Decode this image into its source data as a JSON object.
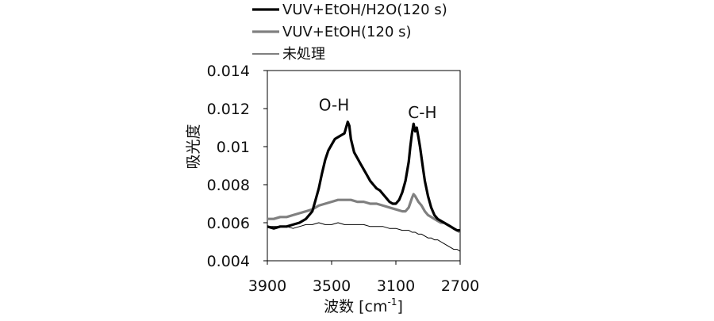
{
  "chart_data": {
    "type": "line",
    "xlabel": "波数 [cm",
    "xlabel_sup": "-1",
    "xlabel_close": "]",
    "ylabel": "吸光度",
    "xlim": [
      3900,
      2700
    ],
    "ylim": [
      0.004,
      0.014
    ],
    "x_reversed": true,
    "x_ticks": [
      3900,
      3500,
      3100,
      2700
    ],
    "y_ticks": [
      0.004,
      0.006,
      0.008,
      0.01,
      0.012,
      0.014
    ],
    "y_tick_labels": [
      "0.004",
      "0.006",
      "0.008",
      "0.01",
      "0.012",
      "0.014"
    ],
    "x_tick_labels": [
      "3900",
      "3500",
      "3100",
      "2700"
    ],
    "grid": false,
    "legend_position": "top",
    "annotations": [
      {
        "text": "O-H",
        "x": 3485,
        "y": 0.0119
      },
      {
        "text": "C-H",
        "x": 2935,
        "y": 0.0115
      }
    ],
    "series": [
      {
        "name": "VUV+EtOH/H2O(120 s)",
        "color": "#000000",
        "width": "thick",
        "x": [
          3900,
          3860,
          3820,
          3780,
          3740,
          3700,
          3660,
          3620,
          3600,
          3580,
          3560,
          3540,
          3520,
          3500,
          3480,
          3460,
          3440,
          3420,
          3400,
          3390,
          3380,
          3360,
          3340,
          3320,
          3300,
          3280,
          3260,
          3240,
          3220,
          3200,
          3180,
          3160,
          3140,
          3120,
          3100,
          3080,
          3060,
          3040,
          3020,
          3010,
          3000,
          2990,
          2980,
          2970,
          2960,
          2950,
          2940,
          2930,
          2920,
          2900,
          2880,
          2860,
          2840,
          2820,
          2800,
          2780,
          2760,
          2740,
          2720,
          2700
        ],
        "y": [
          0.0058,
          0.0057,
          0.0058,
          0.0058,
          0.0059,
          0.006,
          0.0062,
          0.0066,
          0.0072,
          0.0078,
          0.0086,
          0.0093,
          0.0098,
          0.0101,
          0.0104,
          0.0105,
          0.0106,
          0.0107,
          0.0113,
          0.0111,
          0.0104,
          0.0097,
          0.0094,
          0.0091,
          0.0088,
          0.0085,
          0.0082,
          0.008,
          0.0078,
          0.0077,
          0.0075,
          0.0073,
          0.0071,
          0.007,
          0.007,
          0.0072,
          0.0076,
          0.0082,
          0.0092,
          0.01,
          0.0107,
          0.0112,
          0.0108,
          0.011,
          0.0105,
          0.01,
          0.0094,
          0.0088,
          0.0082,
          0.0074,
          0.0068,
          0.0064,
          0.0062,
          0.0061,
          0.006,
          0.0059,
          0.0058,
          0.0057,
          0.0056,
          0.0056
        ]
      },
      {
        "name": "VUV+EtOH(120 s)",
        "color": "#808080",
        "width": "medium",
        "x": [
          3900,
          3860,
          3820,
          3780,
          3740,
          3700,
          3660,
          3620,
          3580,
          3540,
          3500,
          3460,
          3420,
          3380,
          3340,
          3300,
          3260,
          3220,
          3180,
          3140,
          3100,
          3060,
          3040,
          3020,
          3000,
          2990,
          2980,
          2960,
          2940,
          2920,
          2900,
          2880,
          2860,
          2840,
          2820,
          2800,
          2780,
          2760,
          2740,
          2720,
          2700
        ],
        "y": [
          0.0062,
          0.0062,
          0.0063,
          0.0063,
          0.0064,
          0.0065,
          0.0066,
          0.0067,
          0.0069,
          0.007,
          0.0071,
          0.0072,
          0.0072,
          0.0072,
          0.0071,
          0.0071,
          0.007,
          0.007,
          0.0069,
          0.0068,
          0.0067,
          0.0066,
          0.0066,
          0.0068,
          0.0073,
          0.0075,
          0.0074,
          0.0071,
          0.0069,
          0.0066,
          0.0064,
          0.0063,
          0.0062,
          0.0061,
          0.006,
          0.006,
          0.0059,
          0.0058,
          0.0057,
          0.0056,
          0.0055
        ]
      },
      {
        "name": "未処理",
        "color": "#000000",
        "width": "thin",
        "x": [
          3900,
          3860,
          3820,
          3780,
          3740,
          3700,
          3660,
          3620,
          3580,
          3540,
          3500,
          3460,
          3420,
          3380,
          3340,
          3300,
          3260,
          3220,
          3180,
          3140,
          3100,
          3060,
          3020,
          3000,
          2980,
          2960,
          2940,
          2920,
          2900,
          2880,
          2860,
          2840,
          2820,
          2800,
          2780,
          2760,
          2740,
          2720,
          2700
        ],
        "y": [
          0.0058,
          0.0058,
          0.0058,
          0.0058,
          0.0057,
          0.0058,
          0.0059,
          0.0059,
          0.006,
          0.0059,
          0.0059,
          0.006,
          0.0059,
          0.0059,
          0.0059,
          0.0059,
          0.0058,
          0.0058,
          0.0058,
          0.0057,
          0.0057,
          0.0056,
          0.0056,
          0.0055,
          0.0055,
          0.0054,
          0.0054,
          0.0053,
          0.0052,
          0.0052,
          0.0051,
          0.0051,
          0.005,
          0.0049,
          0.0048,
          0.0047,
          0.0046,
          0.0046,
          0.0045
        ]
      }
    ]
  }
}
